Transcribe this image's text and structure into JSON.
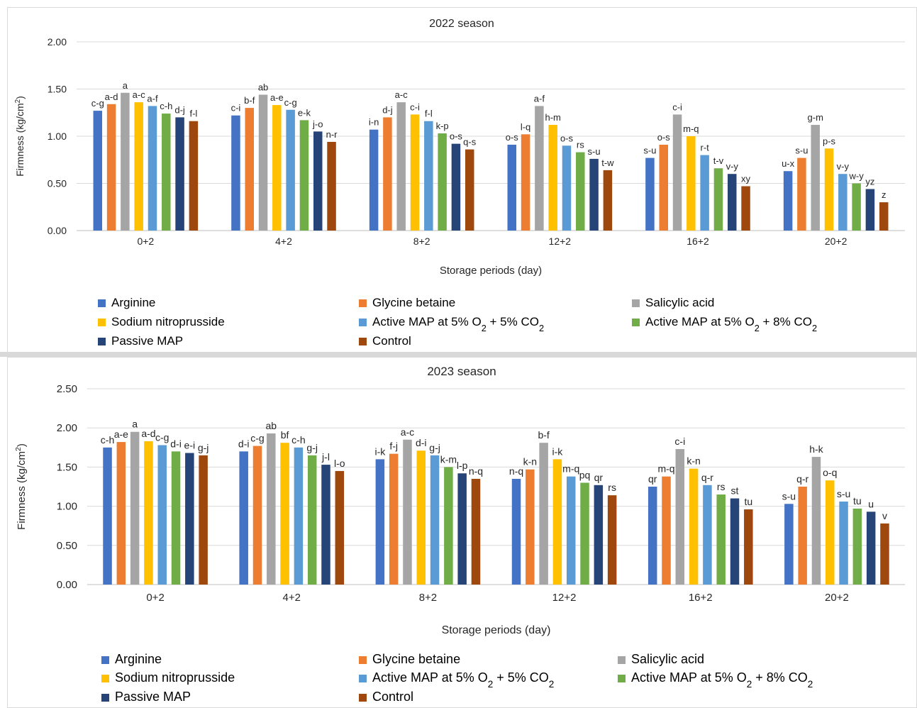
{
  "chart_data": [
    {
      "type": "bar",
      "title": "2022 season",
      "xlabel": "Storage periods (day)",
      "ylabel": "Firmness (kg/cm²)",
      "ylim": [
        0,
        2
      ],
      "yticks": [
        "0.00",
        "0.50",
        "1.00",
        "1.50",
        "2.00"
      ],
      "grid": true,
      "legend_position": "bottom",
      "categories": [
        "0+2",
        "4+2",
        "8+2",
        "12+2",
        "16+2",
        "20+2"
      ],
      "series": [
        {
          "name": "Arginine",
          "color": "#4472c4",
          "values": [
            1.27,
            1.22,
            1.07,
            0.91,
            0.77,
            0.63
          ],
          "labels": [
            "c-g",
            "c-i",
            "i-n",
            "o-s",
            "s-u",
            "u-x"
          ]
        },
        {
          "name": "Glycine betaine",
          "color": "#ed7d31",
          "values": [
            1.34,
            1.3,
            1.2,
            1.02,
            0.91,
            0.77
          ],
          "labels": [
            "a-d",
            "b-f",
            "d-j",
            "l-q",
            "o-s",
            "s-u"
          ]
        },
        {
          "name": "Salicylic acid",
          "color": "#a5a5a5",
          "values": [
            1.46,
            1.44,
            1.36,
            1.32,
            1.23,
            1.12
          ],
          "labels": [
            "a",
            "ab",
            "a-c",
            "a-f",
            "c-i",
            "g-m"
          ]
        },
        {
          "name": "Sodium nitroprusside",
          "color": "#ffc000",
          "values": [
            1.36,
            1.33,
            1.23,
            1.12,
            1.0,
            0.87
          ],
          "labels": [
            "a-c",
            "a-e",
            "c-i",
            "h-m",
            "m-q",
            "p-s"
          ]
        },
        {
          "name": "Active MAP at 5% O₂ + 5% CO₂",
          "color": "#5b9bd5",
          "values": [
            1.32,
            1.28,
            1.16,
            0.9,
            0.8,
            0.6
          ],
          "labels": [
            "a-f",
            "c-g",
            "f-l",
            "o-s",
            "r-t",
            "v-y"
          ]
        },
        {
          "name": "Active MAP at 5% O₂ + 8% CO₂",
          "color": "#70ad47",
          "values": [
            1.24,
            1.17,
            1.03,
            0.83,
            0.66,
            0.5
          ],
          "labels": [
            "c-h",
            "e-k",
            "k-p",
            "rs",
            "t-v",
            "w-y"
          ]
        },
        {
          "name": "Passive MAP",
          "color": "#264478",
          "values": [
            1.2,
            1.05,
            0.92,
            0.76,
            0.6,
            0.44
          ],
          "labels": [
            "d-j",
            "j-o",
            "o-s",
            "s-u",
            "v-y",
            "yz"
          ]
        },
        {
          "name": "Control",
          "color": "#9e480e",
          "values": [
            1.16,
            0.94,
            0.86,
            0.64,
            0.47,
            0.3
          ],
          "labels": [
            "f-l",
            "n-r",
            "q-s",
            "t-w",
            "xy",
            "z"
          ]
        }
      ]
    },
    {
      "type": "bar",
      "title": "2023 season",
      "xlabel": "Storage periods (day)",
      "ylabel": "Firmness (kg/cm²)",
      "ylim": [
        0,
        2.5
      ],
      "yticks": [
        "0.00",
        "0.50",
        "1.00",
        "1.50",
        "2.00",
        "2.50"
      ],
      "grid": true,
      "legend_position": "bottom",
      "categories": [
        "0+2",
        "4+2",
        "8+2",
        "12+2",
        "16+2",
        "20+2"
      ],
      "series": [
        {
          "name": "Arginine",
          "color": "#4472c4",
          "values": [
            1.75,
            1.7,
            1.6,
            1.35,
            1.25,
            1.03
          ],
          "labels": [
            "c-h",
            "d-i",
            "i-k",
            "n-q",
            "qr",
            "s-u"
          ]
        },
        {
          "name": "Glycine betaine",
          "color": "#ed7d31",
          "values": [
            1.82,
            1.77,
            1.67,
            1.47,
            1.38,
            1.25
          ],
          "labels": [
            "a-e",
            "c-g",
            "f-j",
            "k-n",
            "m-q",
            "q-r"
          ]
        },
        {
          "name": "Salicylic acid",
          "color": "#a5a5a5",
          "values": [
            1.95,
            1.93,
            1.85,
            1.81,
            1.73,
            1.63
          ],
          "labels": [
            "a",
            "ab",
            "a-c",
            "b-f",
            "c-i",
            "h-k"
          ]
        },
        {
          "name": "Sodium nitroprusside",
          "color": "#ffc000",
          "values": [
            1.83,
            1.81,
            1.71,
            1.6,
            1.48,
            1.33
          ],
          "labels": [
            "a-d",
            "bf",
            "d-i",
            "i-k",
            "k-n",
            "o-q"
          ]
        },
        {
          "name": "Active MAP at 5% O₂ + 5% CO₂",
          "color": "#5b9bd5",
          "values": [
            1.78,
            1.75,
            1.65,
            1.38,
            1.27,
            1.06
          ],
          "labels": [
            "c-g",
            "c-h",
            "g-j",
            "m-q",
            "q-r",
            "s-u"
          ]
        },
        {
          "name": "Active MAP at 5% O₂ + 8% CO₂",
          "color": "#70ad47",
          "values": [
            1.7,
            1.65,
            1.5,
            1.3,
            1.15,
            0.97
          ],
          "labels": [
            "d-i",
            "g-j",
            "k-m",
            "pq",
            "rs",
            "tu"
          ]
        },
        {
          "name": "Passive MAP",
          "color": "#264478",
          "values": [
            1.68,
            1.53,
            1.42,
            1.27,
            1.1,
            0.93
          ],
          "labels": [
            "e-i",
            "j-l",
            "l-p",
            "qr",
            "st",
            "u"
          ]
        },
        {
          "name": "Control",
          "color": "#9e480e",
          "values": [
            1.65,
            1.45,
            1.35,
            1.14,
            0.96,
            0.78
          ],
          "labels": [
            "g-j",
            "l-o",
            "n-q",
            "rs",
            "tu",
            "v"
          ]
        }
      ]
    }
  ]
}
